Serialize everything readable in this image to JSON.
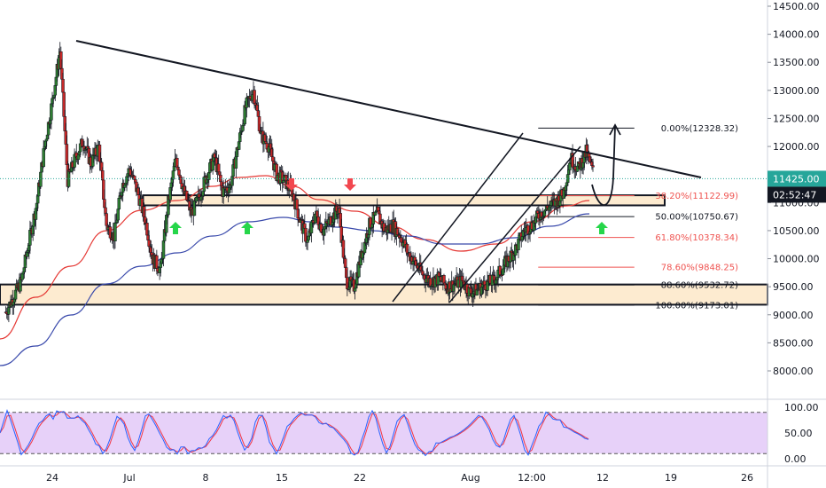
{
  "chart_data": {
    "type": "candlestick",
    "price_axis": {
      "ticks": [
        "14500.00",
        "14000.00",
        "13500.00",
        "13000.00",
        "12500.00",
        "12000.00",
        "11500.00",
        "11000.00",
        "10500.00",
        "10000.00",
        "9500.00",
        "9000.00",
        "8500.00",
        "8000.00"
      ],
      "range": [
        7500,
        14650
      ]
    },
    "time_axis": {
      "labels": [
        "24",
        "Jul",
        "8",
        "15",
        "22",
        "Aug",
        "12:00",
        "12",
        "19",
        "26"
      ],
      "label_dates": [
        "Jun 24",
        "Jul 1",
        "Jul 8",
        "Jul 15",
        "Jul 22",
        "Aug 1",
        "Aug 4 12:00",
        "Aug 12",
        "Aug 19",
        "Aug 26"
      ]
    },
    "last_price": {
      "label": "11425.00",
      "value": 11425,
      "color": "#26a69a"
    },
    "countdown": {
      "label": "02:52:47",
      "color": "#131722"
    },
    "fibonacci": [
      {
        "label": "0.00%(12328.32)",
        "value": 12328.32,
        "color": "#131722"
      },
      {
        "label": "38.20%(11122.99)",
        "value": 11122.99,
        "color": "#ef5350"
      },
      {
        "label": "50.00%(10750.67)",
        "value": 10750.67,
        "color": "#131722"
      },
      {
        "label": "61.80%(10378.34)",
        "value": 10378.34,
        "color": "#ef5350"
      },
      {
        "label": "78.60%(9848.25)",
        "value": 9848.25,
        "color": "#ef5350"
      },
      {
        "label": "88.60%(9532.72)",
        "value": 9532.72,
        "color": "#131722"
      },
      {
        "label": "100.00%(9173.01)",
        "value": 9173.01,
        "color": "#131722"
      }
    ],
    "zones": [
      {
        "low": 10950,
        "high": 11130
      },
      {
        "low": 9180,
        "high": 9540
      }
    ],
    "moving_averages": [
      {
        "color": "#e53935"
      },
      {
        "color": "#3949ab"
      }
    ],
    "oscillator": {
      "ticks": [
        "100.00",
        "50.00",
        "0.00"
      ],
      "band_fill": "#e1c6f7",
      "k_color": "#2962ff",
      "d_color": "#f23645",
      "upper": 90,
      "lower": 10
    },
    "signal_arrows": {
      "up_color": "#26d64a",
      "down_color": "#f2474f"
    }
  }
}
